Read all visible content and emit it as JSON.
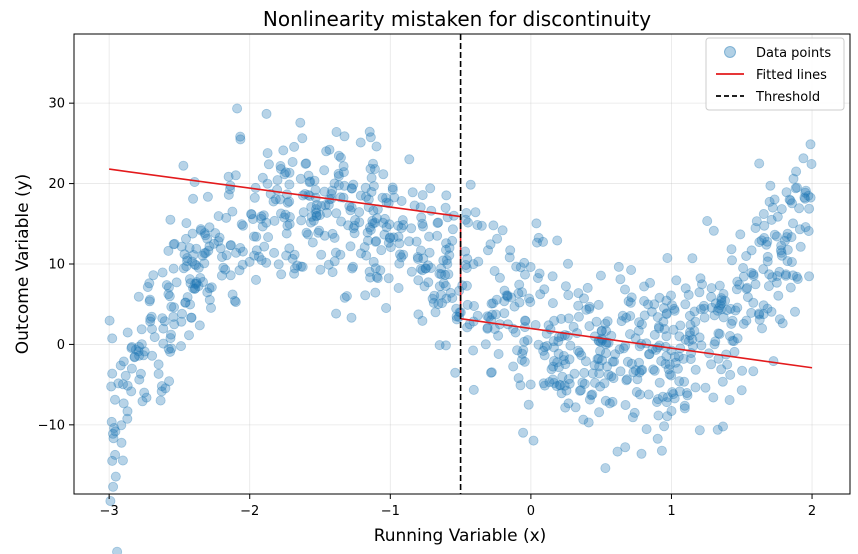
{
  "chart_data": {
    "type": "scatter",
    "title": "Nonlinearity mistaken for discontinuity",
    "xlabel": "Running Variable (x)",
    "ylabel": "Outcome Variable (y)",
    "xlim": [
      -3.25,
      2.27
    ],
    "ylim": [
      -18.6,
      38.6
    ],
    "xticks": [
      -3,
      -2,
      -1,
      0,
      1,
      2
    ],
    "xtick_labels": [
      "−3",
      "−2",
      "−1",
      "0",
      "1",
      "2"
    ],
    "yticks": [
      -10,
      0,
      10,
      20,
      30
    ],
    "ytick_labels": [
      "−10",
      "0",
      "10",
      "20",
      "30"
    ],
    "grid": true,
    "legend_position": "top-right",
    "legend": [
      "Data points",
      "Fitted lines",
      "Threshold"
    ],
    "threshold": -0.5,
    "fitted_lines": [
      {
        "x": [
          -3.0,
          -0.5
        ],
        "y": [
          21.8,
          15.9
        ]
      },
      {
        "x": [
          -0.5,
          2.0
        ],
        "y": [
          3.2,
          -2.9
        ]
      }
    ],
    "scatter_trend": {
      "description": "cubic-like curve with noise",
      "x_range": [
        -3.0,
        2.0
      ],
      "n_points": 1000
    },
    "colors": {
      "points": "#1f77b4",
      "fitted": "#e31a1c",
      "threshold": "#000000"
    }
  }
}
